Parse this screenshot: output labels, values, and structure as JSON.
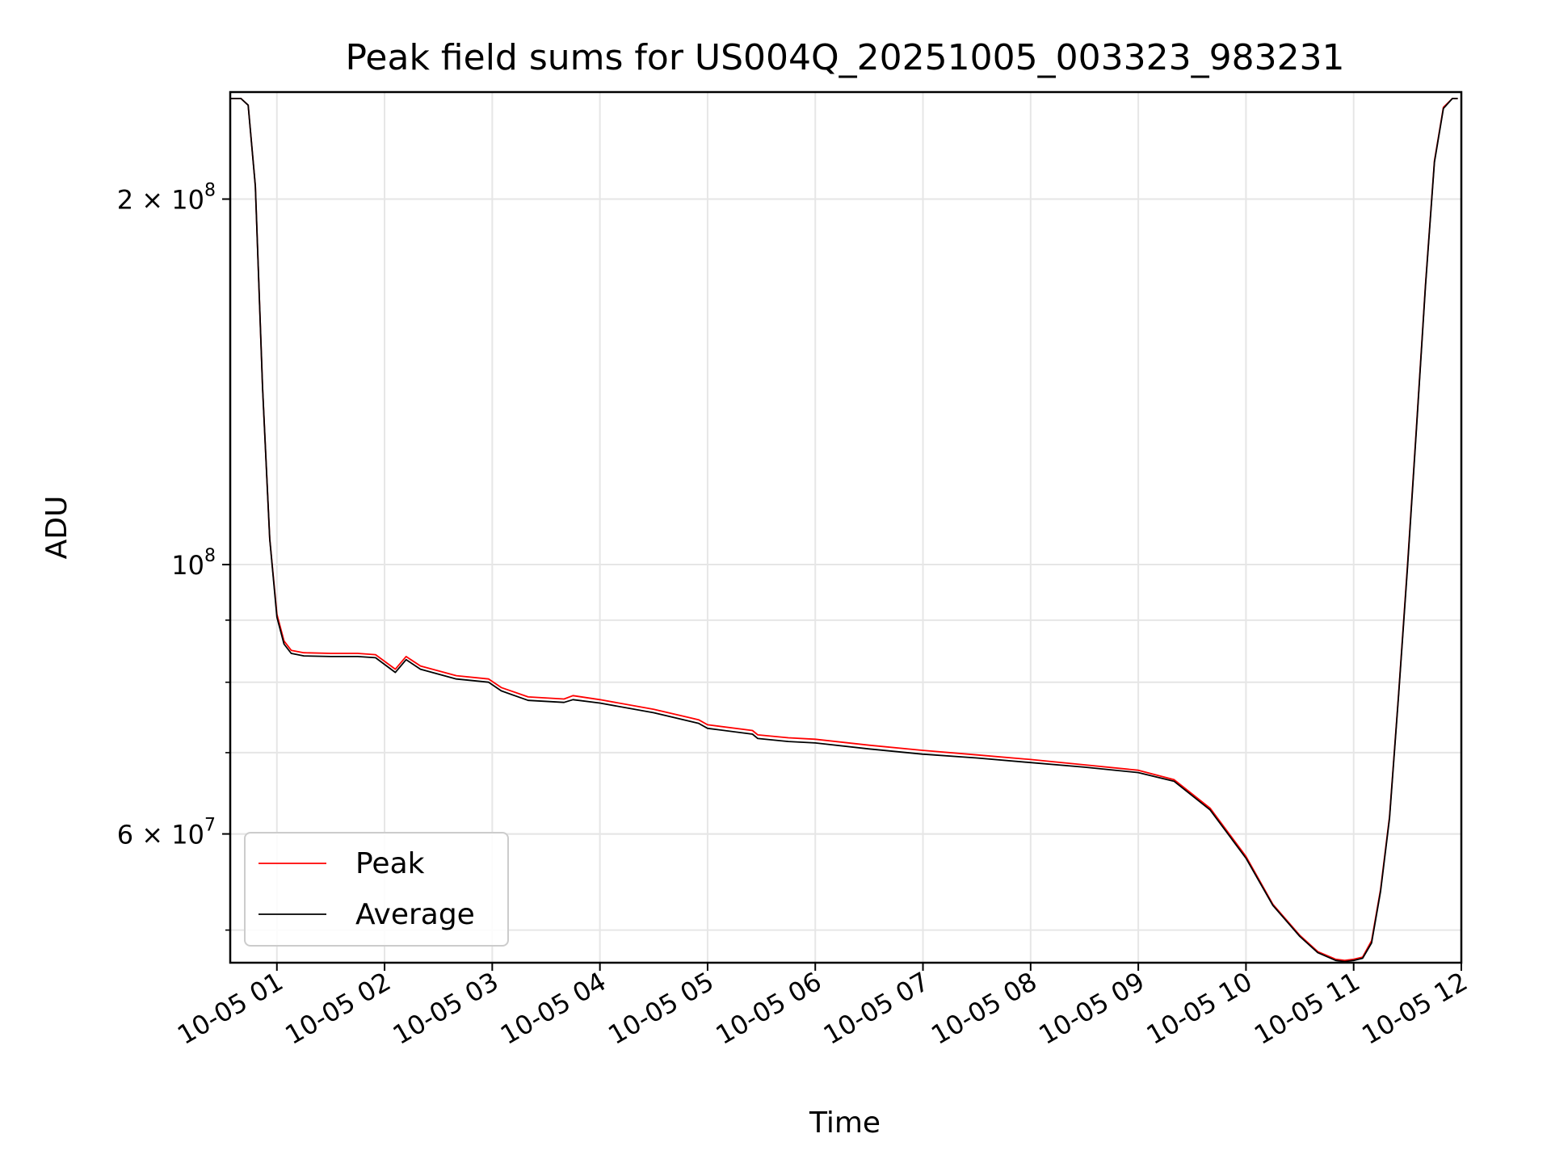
{
  "chart_data": {
    "type": "line",
    "title": "Peak field sums for US004Q_20251005_003323_983231",
    "xlabel": "Time",
    "ylabel": "ADU",
    "y_scale": "log",
    "ylim": [
      47000000,
      245000000
    ],
    "xlim": [
      "10-05 00:34",
      "10-05 12:00"
    ],
    "grid": true,
    "legend_position": "lower-left",
    "x_ticks": [
      "10-05 01",
      "10-05 02",
      "10-05 03",
      "10-05 04",
      "10-05 05",
      "10-05 06",
      "10-05 07",
      "10-05 08",
      "10-05 09",
      "10-05 10",
      "10-05 11",
      "10-05 12"
    ],
    "y_ticks": [
      {
        "value": 200000000,
        "mantissa": "2",
        "exponent": "8"
      },
      {
        "value": 100000000,
        "mantissa": "",
        "exponent": "8"
      },
      {
        "value": 60000000,
        "mantissa": "6",
        "exponent": "7"
      }
    ],
    "series": [
      {
        "name": "Peak",
        "color": "#ff0000",
        "x": [
          "10-05 00:34",
          "10-05 00:40",
          "10-05 00:44",
          "10-05 00:48",
          "10-05 00:52",
          "10-05 00:56",
          "10-05 01:00",
          "10-05 01:04",
          "10-05 01:08",
          "10-05 01:15",
          "10-05 01:30",
          "10-05 01:45",
          "10-05 01:55",
          "10-05 02:06",
          "10-05 02:12",
          "10-05 02:20",
          "10-05 02:40",
          "10-05 02:58",
          "10-05 03:05",
          "10-05 03:20",
          "10-05 03:40",
          "10-05 03:45",
          "10-05 04:00",
          "10-05 04:30",
          "10-05 04:55",
          "10-05 05:00",
          "10-05 05:25",
          "10-05 05:28",
          "10-05 05:45",
          "10-05 06:00",
          "10-05 06:30",
          "10-05 07:00",
          "10-05 07:30",
          "10-05 08:00",
          "10-05 08:30",
          "10-05 09:00",
          "10-05 09:20",
          "10-05 09:40",
          "10-05 10:00",
          "10-05 10:15",
          "10-05 10:30",
          "10-05 10:40",
          "10-05 10:50",
          "10-05 10:55",
          "10-05 11:00",
          "10-05 11:05",
          "10-05 11:10",
          "10-05 11:15",
          "10-05 11:20",
          "10-05 11:25",
          "10-05 11:30",
          "10-05 11:35",
          "10-05 11:40",
          "10-05 11:45",
          "10-05 11:50",
          "10-05 11:55",
          "10-05 11:58"
        ],
        "y": [
          242000000,
          242000000,
          239000000,
          205000000,
          140000000,
          105000000,
          91000000,
          86500000,
          85000000,
          84600000,
          84500000,
          84500000,
          84300000,
          82000000,
          84000000,
          82500000,
          81000000,
          80500000,
          79200000,
          77800000,
          77500000,
          78000000,
          77400000,
          76000000,
          74500000,
          73800000,
          73000000,
          72400000,
          72000000,
          71800000,
          71000000,
          70300000,
          69700000,
          69100000,
          68400000,
          67700000,
          66500000,
          63000000,
          57500000,
          52500000,
          49500000,
          48000000,
          47300000,
          47200000,
          47300000,
          47500000,
          49000000,
          54000000,
          62000000,
          78000000,
          100000000,
          130000000,
          170000000,
          215000000,
          238000000,
          242000000,
          242000000
        ]
      },
      {
        "name": "Average",
        "color": "#000000",
        "x": [
          "10-05 00:34",
          "10-05 00:40",
          "10-05 00:44",
          "10-05 00:48",
          "10-05 00:52",
          "10-05 00:56",
          "10-05 01:00",
          "10-05 01:04",
          "10-05 01:08",
          "10-05 01:15",
          "10-05 01:30",
          "10-05 01:45",
          "10-05 01:55",
          "10-05 02:06",
          "10-05 02:12",
          "10-05 02:20",
          "10-05 02:40",
          "10-05 02:58",
          "10-05 03:05",
          "10-05 03:20",
          "10-05 03:40",
          "10-05 03:45",
          "10-05 04:00",
          "10-05 04:30",
          "10-05 04:55",
          "10-05 05:00",
          "10-05 05:25",
          "10-05 05:28",
          "10-05 05:45",
          "10-05 06:00",
          "10-05 06:30",
          "10-05 07:00",
          "10-05 07:30",
          "10-05 08:00",
          "10-05 08:30",
          "10-05 09:00",
          "10-05 09:20",
          "10-05 09:40",
          "10-05 10:00",
          "10-05 10:15",
          "10-05 10:30",
          "10-05 10:40",
          "10-05 10:50",
          "10-05 10:55",
          "10-05 11:00",
          "10-05 11:05",
          "10-05 11:10",
          "10-05 11:15",
          "10-05 11:20",
          "10-05 11:25",
          "10-05 11:30",
          "10-05 11:35",
          "10-05 11:40",
          "10-05 11:45",
          "10-05 11:50",
          "10-05 11:55",
          "10-05 11:58"
        ],
        "y": [
          242000000,
          242000000,
          239000000,
          205000000,
          140000000,
          105000000,
          90500000,
          86000000,
          84500000,
          84100000,
          84000000,
          84000000,
          83800000,
          81500000,
          83500000,
          82000000,
          80500000,
          80000000,
          78700000,
          77300000,
          77000000,
          77400000,
          76900000,
          75500000,
          74000000,
          73300000,
          72500000,
          71900000,
          71500000,
          71300000,
          70500000,
          69800000,
          69300000,
          68700000,
          68100000,
          67400000,
          66300000,
          62800000,
          57300000,
          52400000,
          49400000,
          47900000,
          47200000,
          47100000,
          47200000,
          47400000,
          48800000,
          53800000,
          61800000,
          77800000,
          99500000,
          129500000,
          169500000,
          214500000,
          237500000,
          242000000,
          242000000
        ]
      }
    ]
  }
}
